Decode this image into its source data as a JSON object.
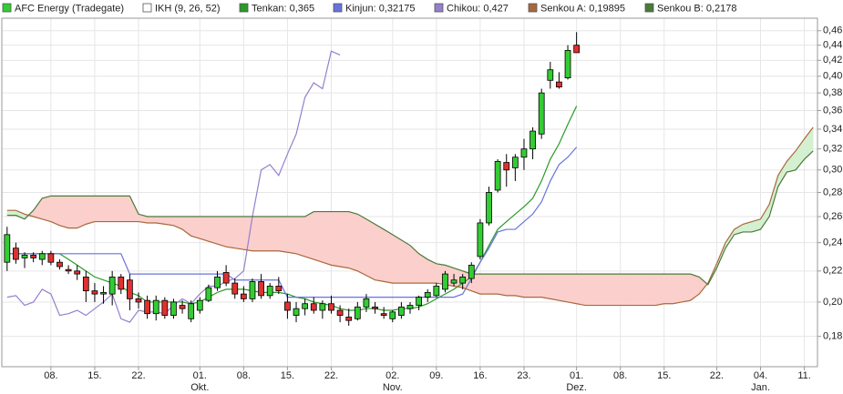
{
  "chart_data": {
    "type": "candlestick",
    "log_scale": true,
    "grid": true,
    "legend_position": "top",
    "indicator": {
      "label": "IKH (9, 26, 52)",
      "color": "#ffffff"
    },
    "candles": {
      "name": "AFC Energy (Tradegate)",
      "up_color": "#33cc33",
      "down_color": "#e03030",
      "color": "#33cc33",
      "open": [
        0.226,
        0.236,
        0.229,
        0.231,
        0.228,
        0.232,
        0.226,
        0.221,
        0.22,
        0.216,
        0.207,
        0.205,
        0.205,
        0.216,
        0.214,
        0.202,
        0.201,
        0.193,
        0.201,
        0.192,
        0.198,
        0.19,
        0.195,
        0.201,
        0.209,
        0.219,
        0.212,
        0.205,
        0.202,
        0.213,
        0.204,
        0.21,
        0.2,
        0.192,
        0.196,
        0.199,
        0.195,
        0.199,
        0.195,
        0.191,
        0.19,
        0.197,
        0.197,
        0.193,
        0.19,
        0.192,
        0.196,
        0.198,
        0.203,
        0.204,
        0.208,
        0.212,
        0.212,
        0.215,
        0.23,
        0.255,
        0.282,
        0.307,
        0.302,
        0.312,
        0.32,
        0.335,
        0.395,
        0.393,
        0.398,
        0.44,
        null,
        null,
        null,
        null,
        null,
        null,
        null,
        null,
        null,
        null,
        null,
        null,
        null,
        null,
        null,
        null,
        null,
        null,
        null,
        null,
        null,
        null,
        null,
        null,
        null,
        null,
        null
      ],
      "high": [
        0.252,
        0.24,
        0.233,
        0.233,
        0.234,
        0.234,
        0.228,
        0.224,
        0.224,
        0.22,
        0.212,
        0.21,
        0.22,
        0.218,
        0.218,
        0.206,
        0.204,
        0.204,
        0.203,
        0.202,
        0.201,
        0.201,
        0.203,
        0.211,
        0.22,
        0.224,
        0.215,
        0.21,
        0.215,
        0.218,
        0.212,
        0.216,
        0.205,
        0.2,
        0.202,
        0.203,
        0.201,
        0.204,
        0.198,
        0.196,
        0.2,
        0.205,
        0.2,
        0.197,
        0.195,
        0.2,
        0.2,
        0.204,
        0.208,
        0.212,
        0.22,
        0.218,
        0.218,
        0.226,
        0.258,
        0.285,
        0.31,
        0.315,
        0.315,
        0.33,
        0.342,
        0.385,
        0.418,
        0.405,
        0.44,
        0.458,
        null,
        null,
        null,
        null,
        null,
        null,
        null,
        null,
        null,
        null,
        null,
        null,
        null,
        null,
        null,
        null,
        null,
        null,
        null,
        null,
        null,
        null,
        null,
        null,
        null,
        null,
        null
      ],
      "low": [
        0.22,
        0.225,
        0.222,
        0.226,
        0.224,
        0.224,
        0.221,
        0.218,
        0.214,
        0.2,
        0.2,
        0.199,
        0.198,
        0.205,
        0.195,
        0.196,
        0.19,
        0.189,
        0.19,
        0.19,
        0.193,
        0.188,
        0.193,
        0.2,
        0.207,
        0.21,
        0.202,
        0.2,
        0.2,
        0.202,
        0.202,
        0.205,
        0.19,
        0.188,
        0.192,
        0.193,
        0.19,
        0.193,
        0.188,
        0.186,
        0.189,
        0.194,
        0.193,
        0.19,
        0.188,
        0.19,
        0.193,
        0.195,
        0.2,
        0.203,
        0.206,
        0.21,
        0.208,
        0.212,
        0.228,
        0.253,
        0.28,
        0.285,
        0.29,
        0.3,
        0.31,
        0.33,
        0.385,
        0.385,
        0.396,
        0.43,
        null,
        null,
        null,
        null,
        null,
        null,
        null,
        null,
        null,
        null,
        null,
        null,
        null,
        null,
        null,
        null,
        null,
        null,
        null,
        null,
        null,
        null,
        null,
        null,
        null,
        null,
        null
      ],
      "close": [
        0.246,
        0.228,
        0.231,
        0.229,
        0.232,
        0.226,
        0.223,
        0.22,
        0.218,
        0.207,
        0.205,
        0.206,
        0.216,
        0.208,
        0.202,
        0.2,
        0.193,
        0.201,
        0.192,
        0.2,
        0.196,
        0.199,
        0.201,
        0.209,
        0.216,
        0.212,
        0.205,
        0.202,
        0.213,
        0.204,
        0.21,
        0.207,
        0.195,
        0.196,
        0.199,
        0.195,
        0.199,
        0.195,
        0.192,
        0.189,
        0.197,
        0.202,
        0.196,
        0.192,
        0.194,
        0.197,
        0.198,
        0.203,
        0.206,
        0.21,
        0.218,
        0.214,
        0.216,
        0.224,
        0.255,
        0.28,
        0.308,
        0.3,
        0.312,
        0.32,
        0.338,
        0.38,
        0.408,
        0.387,
        0.433,
        0.43,
        null,
        null,
        null,
        null,
        null,
        null,
        null,
        null,
        null,
        null,
        null,
        null,
        null,
        null,
        null,
        null,
        null,
        null,
        null,
        null,
        null,
        null,
        null,
        null,
        null,
        null,
        null
      ]
    },
    "series": [
      {
        "name": "Tenkan: 0,365",
        "color": "#2a9a2a",
        "values": [
          0.232,
          0.232,
          0.232,
          0.232,
          0.232,
          0.232,
          0.232,
          0.228,
          0.224,
          0.22,
          0.216,
          0.214,
          0.212,
          0.21,
          0.206,
          0.204,
          0.2,
          0.2,
          0.2,
          0.2,
          0.2,
          0.199,
          0.2,
          0.203,
          0.206,
          0.208,
          0.208,
          0.208,
          0.207,
          0.206,
          0.206,
          0.206,
          0.205,
          0.203,
          0.202,
          0.2,
          0.199,
          0.198,
          0.196,
          0.195,
          0.195,
          0.196,
          0.196,
          0.195,
          0.195,
          0.196,
          0.196,
          0.197,
          0.199,
          0.202,
          0.205,
          0.208,
          0.212,
          0.216,
          0.226,
          0.238,
          0.25,
          0.256,
          0.262,
          0.268,
          0.275,
          0.29,
          0.31,
          0.325,
          0.345,
          0.365,
          null,
          null,
          null,
          null,
          null,
          null,
          null,
          null,
          null,
          null,
          null,
          null,
          null,
          null,
          null,
          null,
          null,
          null,
          null,
          null,
          null,
          null,
          null,
          null,
          null,
          null,
          null
        ]
      },
      {
        "name": "Kinjun: 0,32175",
        "color": "#6673dd",
        "values": [
          0.232,
          0.232,
          0.232,
          0.232,
          0.232,
          0.232,
          0.232,
          0.232,
          0.232,
          0.232,
          0.232,
          0.232,
          0.232,
          0.232,
          0.218,
          0.218,
          0.218,
          0.218,
          0.218,
          0.218,
          0.218,
          0.218,
          0.218,
          0.218,
          0.218,
          0.218,
          0.214,
          0.214,
          0.214,
          0.214,
          0.214,
          0.214,
          0.203,
          0.203,
          0.203,
          0.203,
          0.203,
          0.203,
          0.203,
          0.203,
          0.203,
          0.203,
          0.203,
          0.203,
          0.203,
          0.203,
          0.203,
          0.203,
          0.203,
          0.203,
          0.203,
          0.203,
          0.205,
          0.215,
          0.226,
          0.236,
          0.248,
          0.25,
          0.25,
          0.256,
          0.262,
          0.272,
          0.29,
          0.305,
          0.312,
          0.32175,
          null,
          null,
          null,
          null,
          null,
          null,
          null,
          null,
          null,
          null,
          null,
          null,
          null,
          null,
          null,
          null,
          null,
          null,
          null,
          null,
          null,
          null,
          null,
          null,
          null,
          null,
          null
        ]
      },
      {
        "name": "Chikou: 0,427",
        "color": "#9580cc",
        "values": [
          0.203,
          0.204,
          0.198,
          0.2,
          0.208,
          0.205,
          0.192,
          0.193,
          0.195,
          0.192,
          0.196,
          0.2,
          0.205,
          0.19,
          0.188,
          0.195,
          0.194,
          0.194,
          0.193,
          0.198,
          0.202,
          0.199,
          0.205,
          0.21,
          0.21,
          0.213,
          0.215,
          0.22,
          0.26,
          0.3,
          0.305,
          0.295,
          0.315,
          0.335,
          0.375,
          0.392,
          0.385,
          0.432,
          0.427,
          null,
          null,
          null,
          null,
          null,
          null,
          null,
          null,
          null,
          null,
          null,
          null,
          null,
          null,
          null,
          null,
          null,
          null,
          null,
          null,
          null,
          null,
          null,
          null,
          null,
          null,
          null,
          null,
          null,
          null,
          null,
          null,
          null,
          null,
          null,
          null,
          null,
          null,
          null,
          null,
          null,
          null,
          null,
          null,
          null,
          null,
          null,
          null,
          null,
          null,
          null,
          null,
          null,
          null
        ]
      },
      {
        "name": "Senkou A: 0,19895",
        "color": "#a8683c",
        "values": [
          0.265,
          0.265,
          0.262,
          0.26,
          0.258,
          0.256,
          0.253,
          0.251,
          0.251,
          0.254,
          0.256,
          0.256,
          0.256,
          0.256,
          0.256,
          0.256,
          0.255,
          0.255,
          0.254,
          0.253,
          0.25,
          0.245,
          0.243,
          0.241,
          0.239,
          0.237,
          0.236,
          0.235,
          0.234,
          0.234,
          0.234,
          0.234,
          0.233,
          0.232,
          0.23,
          0.228,
          0.226,
          0.224,
          0.223,
          0.222,
          0.22,
          0.217,
          0.214,
          0.213,
          0.212,
          0.212,
          0.212,
          0.212,
          0.212,
          0.212,
          0.211,
          0.21,
          0.209,
          0.207,
          0.205,
          0.205,
          0.205,
          0.204,
          0.204,
          0.203,
          0.203,
          0.203,
          0.202,
          0.201,
          0.2,
          0.199,
          0.198,
          0.198,
          0.198,
          0.198,
          0.198,
          0.198,
          0.198,
          0.198,
          0.198,
          0.199,
          0.199,
          0.2,
          0.201,
          0.205,
          0.212,
          0.225,
          0.24,
          0.25,
          0.254,
          0.256,
          0.258,
          0.27,
          0.295,
          0.308,
          0.318,
          0.33,
          0.342
        ]
      },
      {
        "name": "Senkou B: 0,2178",
        "color": "#4a7a3a",
        "values": [
          0.261,
          0.261,
          0.258,
          0.265,
          0.275,
          0.277,
          0.277,
          0.277,
          0.277,
          0.277,
          0.277,
          0.277,
          0.277,
          0.277,
          0.277,
          0.262,
          0.26,
          0.26,
          0.26,
          0.26,
          0.26,
          0.26,
          0.26,
          0.26,
          0.26,
          0.26,
          0.26,
          0.26,
          0.26,
          0.26,
          0.26,
          0.26,
          0.26,
          0.26,
          0.26,
          0.264,
          0.264,
          0.264,
          0.264,
          0.264,
          0.262,
          0.258,
          0.254,
          0.25,
          0.246,
          0.242,
          0.238,
          0.232,
          0.228,
          0.225,
          0.224,
          0.222,
          0.22,
          0.218,
          0.218,
          0.218,
          0.218,
          0.218,
          0.218,
          0.218,
          0.218,
          0.218,
          0.218,
          0.218,
          0.218,
          0.218,
          0.218,
          0.218,
          0.218,
          0.218,
          0.218,
          0.218,
          0.218,
          0.218,
          0.218,
          0.218,
          0.218,
          0.218,
          0.218,
          0.216,
          0.211,
          0.222,
          0.236,
          0.246,
          0.248,
          0.248,
          0.25,
          0.26,
          0.285,
          0.298,
          0.3,
          0.31,
          0.318
        ]
      }
    ],
    "cloud_up_color": "#d4f0d0",
    "cloud_down_color": "#fbcfcc",
    "categories": [
      null,
      null,
      null,
      null,
      null,
      "08.",
      null,
      null,
      null,
      null,
      "15.",
      null,
      null,
      null,
      null,
      "22.",
      null,
      null,
      null,
      null,
      null,
      null,
      "01.\nOkt.",
      null,
      null,
      null,
      null,
      "08.",
      null,
      null,
      null,
      null,
      "15.",
      null,
      null,
      null,
      null,
      "22.",
      null,
      null,
      null,
      null,
      null,
      null,
      "02.\nNov.",
      null,
      null,
      null,
      null,
      "09.",
      null,
      null,
      null,
      null,
      "16.",
      null,
      null,
      null,
      null,
      "23.",
      null,
      null,
      null,
      null,
      null,
      "01.\nDez.",
      null,
      null,
      null,
      null,
      "08.",
      null,
      null,
      null,
      null,
      "15.",
      null,
      null,
      null,
      null,
      null,
      "22.",
      null,
      null,
      null,
      null,
      "04.\nJan.",
      null,
      null,
      null,
      null,
      "11.",
      null
    ],
    "ylim": [
      0.164,
      0.478
    ],
    "yticks": [
      {
        "value": 0.18,
        "label": "0,18"
      },
      {
        "value": 0.2,
        "label": "0,20"
      },
      {
        "value": 0.22,
        "label": "0,22"
      },
      {
        "value": 0.24,
        "label": "0,24"
      },
      {
        "value": 0.26,
        "label": "0,26"
      },
      {
        "value": 0.28,
        "label": "0,28"
      },
      {
        "value": 0.3,
        "label": "0,30"
      },
      {
        "value": 0.32,
        "label": "0,32"
      },
      {
        "value": 0.34,
        "label": "0,34"
      },
      {
        "value": 0.36,
        "label": "0,36"
      },
      {
        "value": 0.38,
        "label": "0,38"
      },
      {
        "value": 0.4,
        "label": "0,40"
      },
      {
        "value": 0.42,
        "label": "0,42"
      },
      {
        "value": 0.44,
        "label": "0,44"
      },
      {
        "value": 0.46,
        "label": "0,46"
      }
    ]
  }
}
